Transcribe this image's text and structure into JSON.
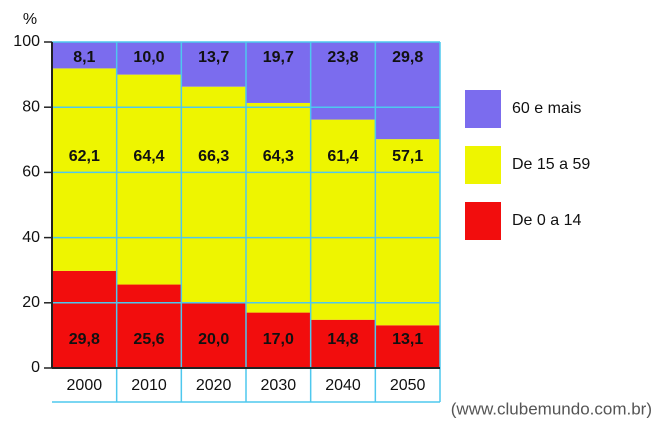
{
  "chart_data": {
    "type": "stacked_bar",
    "y_axis_label": "%",
    "source": "(www.clubemundo.com.br)",
    "categories": [
      "2000",
      "2010",
      "2020",
      "2030",
      "2040",
      "2050"
    ],
    "series": [
      {
        "name": "De 0 a 14",
        "color": "#f20d0d",
        "values": [
          29.8,
          25.6,
          20.0,
          17.0,
          14.8,
          13.1
        ],
        "value_labels": [
          "29,8",
          "25,6",
          "20,0",
          "17,0",
          "14,8",
          "13,1"
        ]
      },
      {
        "name": "De 15 a 59",
        "color": "#eef500",
        "values": [
          62.1,
          64.4,
          66.3,
          64.3,
          61.4,
          57.1
        ],
        "value_labels": [
          "62,1",
          "64,4",
          "66,3",
          "64,3",
          "61,4",
          "57,1"
        ]
      },
      {
        "name": "60 e mais",
        "color": "#7b6cee",
        "values": [
          8.1,
          10.0,
          13.7,
          19.7,
          23.8,
          29.8
        ],
        "value_labels": [
          "8,1",
          "10,0",
          "13,7",
          "19,7",
          "23,8",
          "29,8"
        ]
      }
    ],
    "ylim": [
      0,
      100
    ],
    "yticks": [
      0,
      20,
      40,
      60,
      80,
      100
    ],
    "grid": true,
    "legend": "right"
  }
}
